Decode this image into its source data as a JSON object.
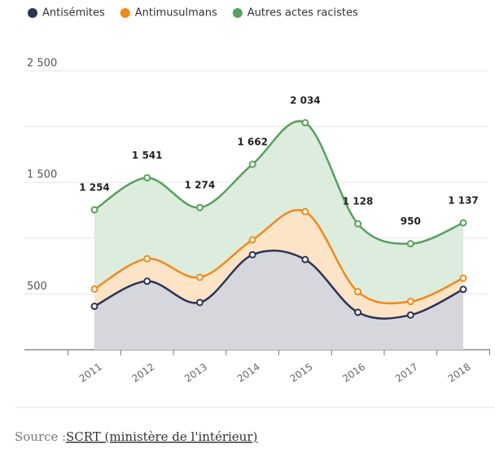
{
  "chart_data": {
    "type": "stacked-area",
    "categories": [
      "2011",
      "2012",
      "2013",
      "2014",
      "2015",
      "2016",
      "2017",
      "2018"
    ],
    "series": [
      {
        "name": "Antisémites",
        "color": "#2f3352",
        "fill": "#d6d7dc",
        "values": [
          389,
          614,
          423,
          851,
          808,
          335,
          311,
          541
        ]
      },
      {
        "name": "Antimusulmans",
        "color": "#ee8a1c",
        "fill": "#fde4c6",
        "values": [
          154,
          201,
          226,
          133,
          429,
          185,
          121,
          100
        ]
      },
      {
        "name": "Autres actes racistes",
        "color": "#5a9e60",
        "fill": "#dcecdd",
        "values": [
          711,
          726,
          625,
          678,
          797,
          608,
          518,
          496
        ]
      }
    ],
    "total_labels": [
      "1 254",
      "1 541",
      "1 274",
      "1 662",
      "2 034",
      "1 128",
      "950",
      "1 137"
    ],
    "ylim": [
      0,
      2500
    ],
    "yticks": [
      500,
      {
        "value": 1500,
        "label": "1 500"
      },
      {
        "value": 2500,
        "label": "2 500"
      }
    ],
    "minor_yticks": [
      1000,
      2000
    ],
    "grid": true,
    "source_label": "Source :",
    "source": "SCRT (ministère de l'intérieur)"
  }
}
